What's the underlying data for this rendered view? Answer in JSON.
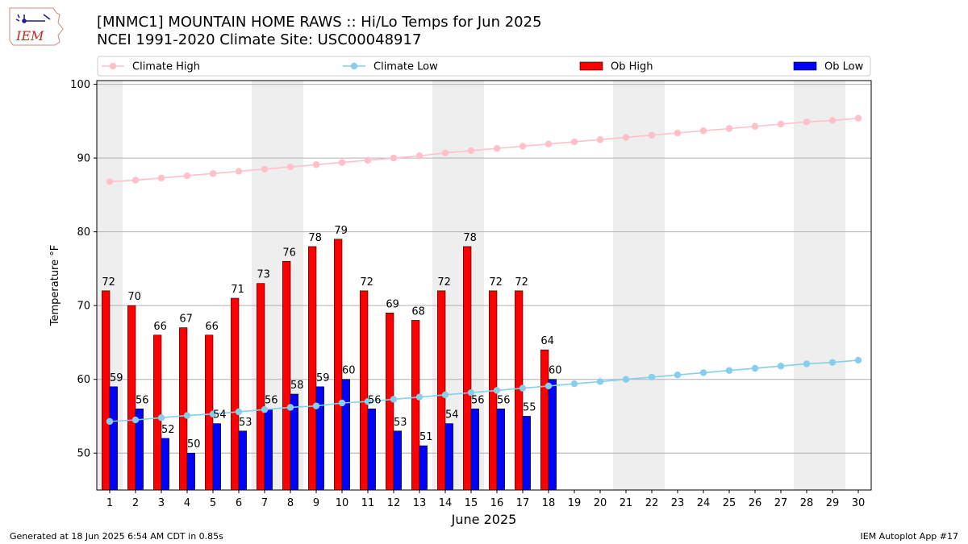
{
  "header": {
    "title_line1": "[MNMC1] MOUNTAIN HOME RAWS :: Hi/Lo Temps for Jun 2025",
    "title_line2": "NCEI 1991-2020 Climate Site: USC00048917",
    "logo_text": "IEM"
  },
  "footer": {
    "generated": "Generated at 18 Jun 2025 6:54 AM CDT in 0.85s",
    "app": "IEM Autoplot App #17"
  },
  "colors": {
    "ob_high": "#ff0000",
    "ob_low": "#0000ff",
    "climate_high": "#ffc0cb",
    "climate_low": "#87ceeb",
    "weekend_band": "#eeeeee",
    "grid": "#b0b0b0"
  },
  "chart_data": {
    "type": "bar",
    "xlabel": "June 2025",
    "ylabel": "Temperature °F",
    "ylim": [
      45,
      100.5
    ],
    "yticks": [
      50,
      60,
      70,
      80,
      90,
      100
    ],
    "xlim": [
      0.5,
      30.5
    ],
    "grid": "horizontal",
    "legend_position": "top",
    "weekend_bands": [
      [
        1,
        1
      ],
      [
        7,
        8
      ],
      [
        14,
        15
      ],
      [
        21,
        22
      ],
      [
        28,
        29
      ]
    ],
    "days": [
      1,
      2,
      3,
      4,
      5,
      6,
      7,
      8,
      9,
      10,
      11,
      12,
      13,
      14,
      15,
      16,
      17,
      18,
      19,
      20,
      21,
      22,
      23,
      24,
      25,
      26,
      27,
      28,
      29,
      30
    ],
    "series": [
      {
        "name": "Climate High",
        "kind": "line",
        "values": [
          86.8,
          87.0,
          87.3,
          87.6,
          87.9,
          88.2,
          88.5,
          88.8,
          89.1,
          89.4,
          89.7,
          90.0,
          90.3,
          90.7,
          91.0,
          91.3,
          91.6,
          91.9,
          92.2,
          92.5,
          92.8,
          93.1,
          93.4,
          93.7,
          94.0,
          94.3,
          94.6,
          94.9,
          95.1,
          95.4
        ]
      },
      {
        "name": "Climate Low",
        "kind": "line",
        "values": [
          54.3,
          54.5,
          54.8,
          55.1,
          55.3,
          55.6,
          55.9,
          56.2,
          56.4,
          56.8,
          57.0,
          57.3,
          57.6,
          57.9,
          58.2,
          58.5,
          58.8,
          59.1,
          59.4,
          59.7,
          60.0,
          60.3,
          60.6,
          60.9,
          61.2,
          61.5,
          61.8,
          62.1,
          62.3,
          62.6
        ]
      },
      {
        "name": "Ob High",
        "kind": "bar",
        "values": [
          72,
          70,
          66,
          67,
          66,
          71,
          73,
          76,
          78,
          79,
          72,
          69,
          68,
          72,
          78,
          72,
          72,
          64
        ]
      },
      {
        "name": "Ob Low",
        "kind": "bar",
        "values": [
          59,
          56,
          52,
          50,
          54,
          53,
          56,
          58,
          59,
          60,
          56,
          53,
          51,
          54,
          56,
          56,
          55,
          60
        ]
      }
    ]
  }
}
